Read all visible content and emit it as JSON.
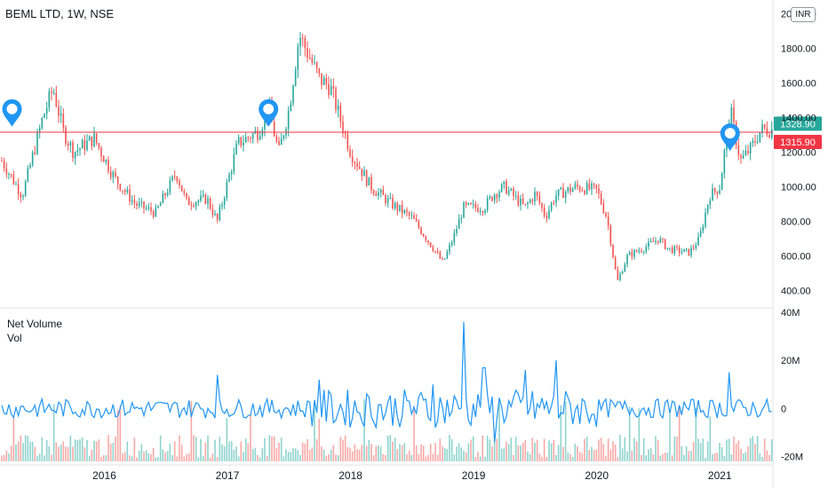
{
  "header": {
    "title": "BEML LTD, 1W, NSE"
  },
  "currency": "INR",
  "indicator": {
    "name": "Net Volume",
    "sub": "Vol"
  },
  "colors": {
    "up": "#26a69a",
    "down": "#ef5350",
    "line": "#2196f3",
    "hline": "#f23645",
    "marker": "#2196f3",
    "last": "#26a69a",
    "ref": "#f23645",
    "volUp": "#8fd4cd",
    "volDown": "#f7a9a7"
  },
  "chart_data": [
    {
      "type": "candlestick",
      "title": "BEML LTD, 1W, NSE",
      "price_axis": {
        "ticks": [
          400,
          600,
          800,
          1000,
          1200,
          1400,
          1600,
          1800,
          2000
        ],
        "tick_labels": [
          "400.00",
          "600.00",
          "800.00",
          "1000.00",
          "1200.00",
          "1400.00",
          "1600.00",
          "1800.00",
          "2000.00"
        ],
        "range": [
          300,
          2080
        ]
      },
      "time_axis": {
        "labels": [
          "2016",
          "2017",
          "2018",
          "2019",
          "2020",
          "2021"
        ],
        "range": [
          "2015-03",
          "2021-06"
        ]
      },
      "last_price": "1328.90",
      "reference_price": "1315.90",
      "reference_line": 1315.9,
      "markers": [
        {
          "date": "2015-04",
          "price": 1450
        },
        {
          "date": "2017-05",
          "price": 1450
        },
        {
          "date": "2021-02",
          "price": 1310
        }
      ],
      "price_path": [
        {
          "date": "2015-03",
          "close": 1150
        },
        {
          "date": "2015-05",
          "close": 950
        },
        {
          "date": "2015-07",
          "close": 1400
        },
        {
          "date": "2015-08",
          "close": 1570
        },
        {
          "date": "2015-09",
          "close": 1320
        },
        {
          "date": "2015-10",
          "close": 1200
        },
        {
          "date": "2015-12",
          "close": 1280
        },
        {
          "date": "2016-02",
          "close": 1050
        },
        {
          "date": "2016-04",
          "close": 900
        },
        {
          "date": "2016-06",
          "close": 850
        },
        {
          "date": "2016-08",
          "close": 1080
        },
        {
          "date": "2016-09",
          "close": 910
        },
        {
          "date": "2016-11",
          "close": 930
        },
        {
          "date": "2016-12",
          "close": 800
        },
        {
          "date": "2017-02",
          "close": 1250
        },
        {
          "date": "2017-04",
          "close": 1320
        },
        {
          "date": "2017-05",
          "close": 1450
        },
        {
          "date": "2017-06",
          "close": 1200
        },
        {
          "date": "2017-07",
          "close": 1450
        },
        {
          "date": "2017-08",
          "close": 1880
        },
        {
          "date": "2017-09",
          "close": 1750
        },
        {
          "date": "2017-10",
          "close": 1620
        },
        {
          "date": "2017-11",
          "close": 1580
        },
        {
          "date": "2018-01",
          "close": 1200
        },
        {
          "date": "2018-03",
          "close": 1000
        },
        {
          "date": "2018-05",
          "close": 900
        },
        {
          "date": "2018-07",
          "close": 820
        },
        {
          "date": "2018-09",
          "close": 650
        },
        {
          "date": "2018-10",
          "close": 560
        },
        {
          "date": "2018-11",
          "close": 700
        },
        {
          "date": "2018-12",
          "close": 880
        },
        {
          "date": "2019-02",
          "close": 880
        },
        {
          "date": "2019-03",
          "close": 960
        },
        {
          "date": "2019-04",
          "close": 1000
        },
        {
          "date": "2019-06",
          "close": 880
        },
        {
          "date": "2019-07",
          "close": 960
        },
        {
          "date": "2019-08",
          "close": 830
        },
        {
          "date": "2019-09",
          "close": 950
        },
        {
          "date": "2019-11",
          "close": 1000
        },
        {
          "date": "2020-01",
          "close": 980
        },
        {
          "date": "2020-02",
          "close": 820
        },
        {
          "date": "2020-03",
          "close": 450
        },
        {
          "date": "2020-04",
          "close": 600
        },
        {
          "date": "2020-06",
          "close": 660
        },
        {
          "date": "2020-07",
          "close": 700
        },
        {
          "date": "2020-08",
          "close": 640
        },
        {
          "date": "2020-10",
          "close": 620
        },
        {
          "date": "2020-11",
          "close": 700
        },
        {
          "date": "2020-12",
          "close": 950
        },
        {
          "date": "2021-01",
          "close": 1000
        },
        {
          "date": "2021-02",
          "close": 1450
        },
        {
          "date": "2021-03",
          "close": 1150
        },
        {
          "date": "2021-04",
          "close": 1220
        },
        {
          "date": "2021-05",
          "close": 1330
        }
      ]
    },
    {
      "type": "line",
      "title": "Net Volume",
      "axis": {
        "ticks": [
          40,
          20,
          0,
          -20
        ],
        "tick_labels": [
          "40M",
          "20M",
          "0",
          "-20M"
        ],
        "range": [
          -22,
          40
        ]
      },
      "spikes": [
        {
          "date": "2016-12",
          "value": 14
        },
        {
          "date": "2017-10",
          "value": 12
        },
        {
          "date": "2018-09",
          "value": 10
        },
        {
          "date": "2018-12",
          "value": 36
        },
        {
          "date": "2019-02",
          "value": 17
        },
        {
          "date": "2019-03",
          "value": -14
        },
        {
          "date": "2019-06",
          "value": 16
        },
        {
          "date": "2019-09",
          "value": 20
        },
        {
          "date": "2021-02",
          "value": 15
        }
      ]
    }
  ]
}
